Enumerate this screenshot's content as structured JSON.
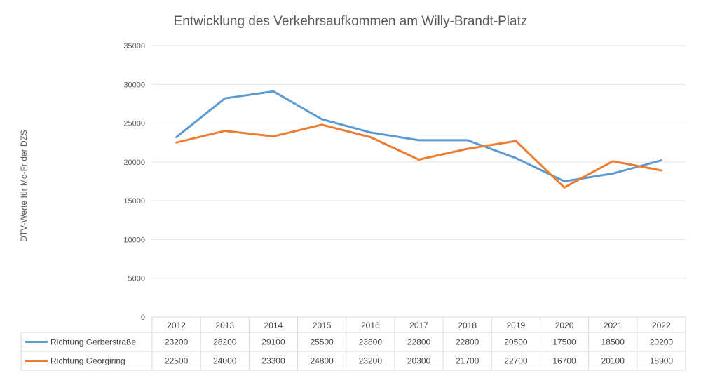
{
  "chart_data": {
    "type": "line",
    "title": "Entwicklung des Verkehrsaufkommen  am Willy-Brandt-Platz",
    "ylabel": "DTV-Werte für Mo-Fr der DZS",
    "ylim": [
      0,
      35000
    ],
    "yticks": [
      0,
      5000,
      10000,
      15000,
      20000,
      25000,
      30000,
      35000
    ],
    "categories": [
      "2012",
      "2013",
      "2014",
      "2015",
      "2016",
      "2017",
      "2018",
      "2019",
      "2020",
      "2021",
      "2022"
    ],
    "grid": true,
    "legend": "data-table",
    "series": [
      {
        "name": "Richtung Gerberstraße",
        "color": "#5b9bd5",
        "values": [
          23200,
          28200,
          29100,
          25500,
          23800,
          22800,
          22800,
          20500,
          17500,
          18500,
          20200
        ]
      },
      {
        "name": "Richtung Georgiring",
        "color": "#ed7d31",
        "values": [
          22500,
          24000,
          23300,
          24800,
          23200,
          20300,
          21700,
          22700,
          16700,
          20100,
          18900
        ]
      }
    ]
  }
}
